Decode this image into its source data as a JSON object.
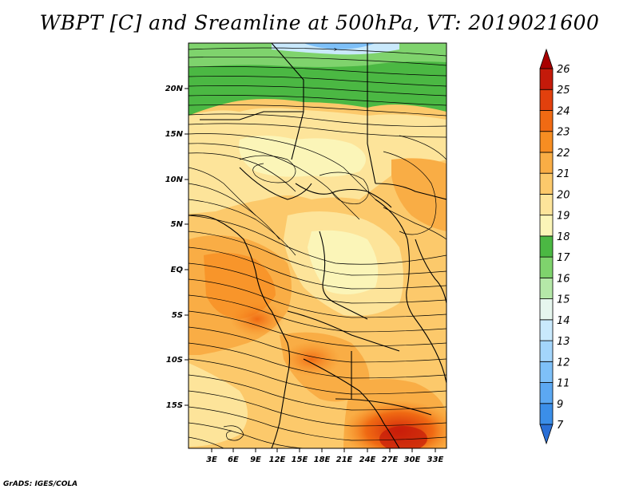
{
  "title": "WBPT [C] and Sreamline at 500hPa, VT: 2019021600",
  "credit": "GrADS: IGES/COLA",
  "map": {
    "lat_labels": [
      "20N",
      "15N",
      "10N",
      "5N",
      "EQ",
      "5S",
      "10S",
      "15S"
    ],
    "lon_labels": [
      "3E",
      "6E",
      "9E",
      "12E",
      "15E",
      "18E",
      "21E",
      "24E",
      "27E",
      "30E",
      "33E"
    ]
  },
  "colorbar": {
    "levels": [
      "7",
      "9",
      "11",
      "12",
      "13",
      "14",
      "15",
      "16",
      "17",
      "18",
      "19",
      "20",
      "21",
      "22",
      "23",
      "24",
      "25",
      "26"
    ],
    "colors": [
      "#2a6fd6",
      "#3b8ee8",
      "#5ca8f2",
      "#7ec0f8",
      "#a3d5fb",
      "#c9e9fc",
      "#e6f6ee",
      "#b5e8a8",
      "#7fd36d",
      "#4bb843",
      "#fbf5b8",
      "#fde49a",
      "#fcc96b",
      "#f9ad45",
      "#f78d22",
      "#f06a13",
      "#e2400d",
      "#c41a0a",
      "#a80000"
    ]
  }
}
